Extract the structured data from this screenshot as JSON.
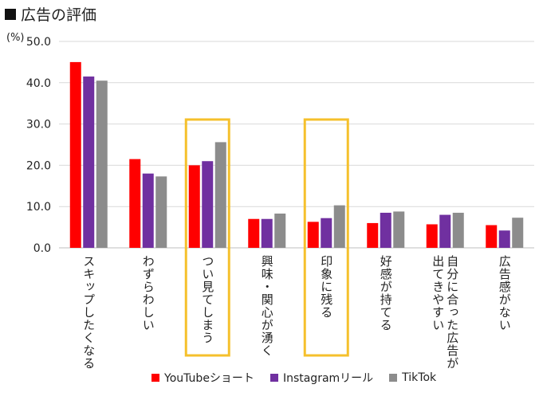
{
  "page": {
    "title": "広告の評価"
  },
  "chart_data": {
    "type": "bar",
    "title": "広告の評価",
    "ylabel": "(%)",
    "ylim": [
      0,
      50
    ],
    "yticks": [
      "0.0",
      "10.0",
      "20.0",
      "30.0",
      "40.0",
      "50.0"
    ],
    "categories": [
      "スキップしたくなる",
      "わずらわしい",
      "つい見てしまう",
      "興味・関心が湧く",
      "印象に残る",
      "好感が持てる",
      "自分に合った広告が出てきやすい",
      "広告感がない"
    ],
    "category_lines": [
      [
        "スキップしたくなる"
      ],
      [
        "わずらわしい"
      ],
      [
        "つい見てしまう"
      ],
      [
        "興味・関心が湧く"
      ],
      [
        "印象に残る"
      ],
      [
        "好感が持てる"
      ],
      [
        "自分に合った広告が",
        "出てきやすい"
      ],
      [
        "広告感がない"
      ]
    ],
    "highlighted": [
      "つい見てしまう",
      "印象に残る"
    ],
    "series": [
      {
        "name": "YouTubeショート",
        "color": "#ff0000",
        "values": [
          45.0,
          21.5,
          20.0,
          7.0,
          6.3,
          6.0,
          5.7,
          5.5
        ]
      },
      {
        "name": "Instagramリール",
        "color": "#7030a0",
        "values": [
          41.5,
          18.0,
          21.0,
          7.0,
          7.2,
          8.5,
          8.0,
          4.2
        ]
      },
      {
        "name": "TikTok",
        "color": "#8c8c8c",
        "values": [
          40.5,
          17.3,
          25.6,
          8.3,
          10.3,
          8.8,
          8.5,
          7.3
        ]
      }
    ],
    "highlight_color": "#f5c02c",
    "legend_position": "bottom"
  }
}
